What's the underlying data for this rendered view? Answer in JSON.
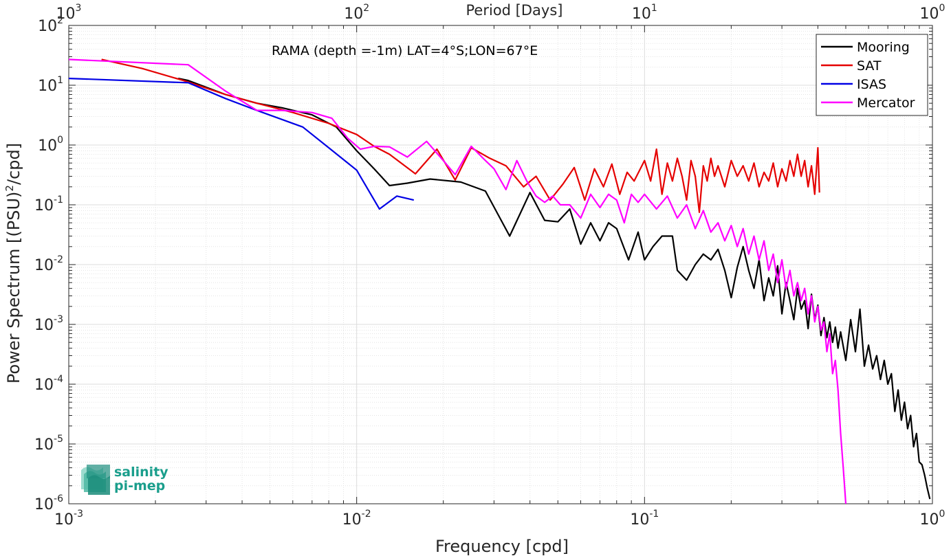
{
  "chart_data": {
    "type": "line",
    "title": "RAMA (depth =-1m) LAT=4°S;LON=67°E",
    "xlabel": "Frequency [cpd]",
    "ylabel_base": "Power Spectrum [(PSU)",
    "ylabel_sup": "2",
    "ylabel_tail": "/cpd]",
    "top_xlabel": "Period [Days]",
    "x_scale": "log",
    "y_scale": "log",
    "xlim": [
      0.001,
      1
    ],
    "ylim": [
      1e-06,
      100
    ],
    "grid": true,
    "legend_position": "top-right",
    "x_ticks": [
      {
        "base": "10",
        "exp": "-3",
        "value": 0.001
      },
      {
        "base": "10",
        "exp": "-2",
        "value": 0.01
      },
      {
        "base": "10",
        "exp": "-1",
        "value": 0.1
      },
      {
        "base": "10",
        "exp": "0",
        "value": 1
      }
    ],
    "top_ticks": [
      {
        "base": "10",
        "exp": "3",
        "value": 0.001
      },
      {
        "base": "10",
        "exp": "2",
        "value": 0.01
      },
      {
        "base": "10",
        "exp": "1",
        "value": 0.1
      },
      {
        "base": "10",
        "exp": "0",
        "value": 1
      }
    ],
    "y_ticks": [
      {
        "base": "10",
        "exp": "2",
        "value": 100
      },
      {
        "base": "10",
        "exp": "1",
        "value": 10
      },
      {
        "base": "10",
        "exp": "0",
        "value": 1
      },
      {
        "base": "10",
        "exp": "-1",
        "value": 0.1
      },
      {
        "base": "10",
        "exp": "-2",
        "value": 0.01
      },
      {
        "base": "10",
        "exp": "-3",
        "value": 0.001
      },
      {
        "base": "10",
        "exp": "-4",
        "value": 0.0001
      },
      {
        "base": "10",
        "exp": "-5",
        "value": 1e-05
      },
      {
        "base": "10",
        "exp": "-6",
        "value": 1e-06
      }
    ],
    "series": [
      {
        "name": "Mooring",
        "color": "#000000",
        "points": [
          [
            0.0024,
            13
          ],
          [
            0.0026,
            12
          ],
          [
            0.0035,
            7
          ],
          [
            0.0045,
            5
          ],
          [
            0.0055,
            4.2
          ],
          [
            0.007,
            3.2
          ],
          [
            0.0085,
            2
          ],
          [
            0.01,
            0.8
          ],
          [
            0.0115,
            0.4
          ],
          [
            0.013,
            0.21
          ],
          [
            0.015,
            0.23
          ],
          [
            0.018,
            0.27
          ],
          [
            0.023,
            0.24
          ],
          [
            0.028,
            0.17
          ],
          [
            0.034,
            0.03
          ],
          [
            0.04,
            0.16
          ],
          [
            0.045,
            0.055
          ],
          [
            0.05,
            0.052
          ],
          [
            0.055,
            0.085
          ],
          [
            0.06,
            0.022
          ],
          [
            0.065,
            0.05
          ],
          [
            0.07,
            0.025
          ],
          [
            0.075,
            0.05
          ],
          [
            0.08,
            0.04
          ],
          [
            0.088,
            0.012
          ],
          [
            0.095,
            0.035
          ],
          [
            0.1,
            0.012
          ],
          [
            0.107,
            0.02
          ],
          [
            0.115,
            0.03
          ],
          [
            0.125,
            0.03
          ],
          [
            0.13,
            0.008
          ],
          [
            0.14,
            0.0055
          ],
          [
            0.15,
            0.01
          ],
          [
            0.16,
            0.015
          ],
          [
            0.17,
            0.012
          ],
          [
            0.18,
            0.018
          ],
          [
            0.19,
            0.008
          ],
          [
            0.2,
            0.0028
          ],
          [
            0.21,
            0.009
          ],
          [
            0.22,
            0.02
          ],
          [
            0.23,
            0.008
          ],
          [
            0.24,
            0.004
          ],
          [
            0.25,
            0.012
          ],
          [
            0.26,
            0.0025
          ],
          [
            0.27,
            0.006
          ],
          [
            0.28,
            0.003
          ],
          [
            0.29,
            0.0095
          ],
          [
            0.3,
            0.0015
          ],
          [
            0.31,
            0.005
          ],
          [
            0.32,
            0.0025
          ],
          [
            0.33,
            0.0012
          ],
          [
            0.34,
            0.004
          ],
          [
            0.35,
            0.0018
          ],
          [
            0.36,
            0.0025
          ],
          [
            0.37,
            0.00085
          ],
          [
            0.38,
            0.0032
          ],
          [
            0.39,
            0.0012
          ],
          [
            0.4,
            0.0021
          ],
          [
            0.41,
            0.00065
          ],
          [
            0.42,
            0.0013
          ],
          [
            0.43,
            0.0006
          ],
          [
            0.44,
            0.0011
          ],
          [
            0.45,
            0.0005
          ],
          [
            0.46,
            0.0009
          ],
          [
            0.47,
            0.0004
          ],
          [
            0.48,
            0.00075
          ],
          [
            0.5,
            0.00025
          ],
          [
            0.52,
            0.0012
          ],
          [
            0.54,
            0.00035
          ],
          [
            0.56,
            0.0018
          ],
          [
            0.58,
            0.0002
          ],
          [
            0.6,
            0.00045
          ],
          [
            0.62,
            0.00018
          ],
          [
            0.64,
            0.0003
          ],
          [
            0.66,
            0.00012
          ],
          [
            0.68,
            0.00025
          ],
          [
            0.7,
            0.0001
          ],
          [
            0.72,
            0.00015
          ],
          [
            0.74,
            3.5e-05
          ],
          [
            0.76,
            8e-05
          ],
          [
            0.78,
            2.5e-05
          ],
          [
            0.8,
            5e-05
          ],
          [
            0.82,
            1.8e-05
          ],
          [
            0.84,
            3e-05
          ],
          [
            0.86,
            9e-06
          ],
          [
            0.88,
            1.5e-05
          ],
          [
            0.9,
            5e-06
          ],
          [
            0.92,
            4.5e-06
          ],
          [
            0.94,
            3e-06
          ],
          [
            0.96,
            1.8e-06
          ],
          [
            0.98,
            1.2e-06
          ]
        ]
      },
      {
        "name": "SAT",
        "color": "#e50000",
        "points": [
          [
            0.0013,
            27
          ],
          [
            0.0018,
            19
          ],
          [
            0.0025,
            12
          ],
          [
            0.0035,
            7
          ],
          [
            0.0045,
            5
          ],
          [
            0.006,
            3.5
          ],
          [
            0.008,
            2.3
          ],
          [
            0.01,
            1.5
          ],
          [
            0.0115,
            0.95
          ],
          [
            0.013,
            0.7
          ],
          [
            0.016,
            0.33
          ],
          [
            0.019,
            0.85
          ],
          [
            0.022,
            0.26
          ],
          [
            0.025,
            0.9
          ],
          [
            0.029,
            0.6
          ],
          [
            0.033,
            0.45
          ],
          [
            0.038,
            0.2
          ],
          [
            0.042,
            0.3
          ],
          [
            0.047,
            0.12
          ],
          [
            0.052,
            0.22
          ],
          [
            0.057,
            0.42
          ],
          [
            0.062,
            0.12
          ],
          [
            0.067,
            0.4
          ],
          [
            0.072,
            0.2
          ],
          [
            0.077,
            0.48
          ],
          [
            0.082,
            0.15
          ],
          [
            0.087,
            0.35
          ],
          [
            0.092,
            0.25
          ],
          [
            0.1,
            0.55
          ],
          [
            0.105,
            0.25
          ],
          [
            0.11,
            0.85
          ],
          [
            0.115,
            0.15
          ],
          [
            0.12,
            0.5
          ],
          [
            0.125,
            0.25
          ],
          [
            0.13,
            0.6
          ],
          [
            0.135,
            0.3
          ],
          [
            0.14,
            0.12
          ],
          [
            0.145,
            0.55
          ],
          [
            0.15,
            0.3
          ],
          [
            0.155,
            0.075
          ],
          [
            0.16,
            0.45
          ],
          [
            0.165,
            0.25
          ],
          [
            0.17,
            0.6
          ],
          [
            0.175,
            0.3
          ],
          [
            0.18,
            0.45
          ],
          [
            0.19,
            0.2
          ],
          [
            0.2,
            0.55
          ],
          [
            0.21,
            0.3
          ],
          [
            0.22,
            0.45
          ],
          [
            0.23,
            0.25
          ],
          [
            0.24,
            0.5
          ],
          [
            0.25,
            0.2
          ],
          [
            0.26,
            0.35
          ],
          [
            0.27,
            0.25
          ],
          [
            0.28,
            0.5
          ],
          [
            0.29,
            0.2
          ],
          [
            0.3,
            0.4
          ],
          [
            0.31,
            0.25
          ],
          [
            0.32,
            0.55
          ],
          [
            0.33,
            0.3
          ],
          [
            0.34,
            0.7
          ],
          [
            0.35,
            0.3
          ],
          [
            0.36,
            0.55
          ],
          [
            0.37,
            0.2
          ],
          [
            0.38,
            0.45
          ],
          [
            0.39,
            0.15
          ],
          [
            0.4,
            0.9
          ],
          [
            0.405,
            0.16
          ]
        ]
      },
      {
        "name": "ISAS",
        "color": "#0000e5",
        "points": [
          [
            0.001,
            13
          ],
          [
            0.0026,
            11
          ],
          [
            0.0035,
            6
          ],
          [
            0.0045,
            3.8
          ],
          [
            0.0065,
            2
          ],
          [
            0.008,
            0.9
          ],
          [
            0.01,
            0.38
          ],
          [
            0.012,
            0.085
          ],
          [
            0.0138,
            0.14
          ],
          [
            0.0158,
            0.12
          ]
        ]
      },
      {
        "name": "Mercator",
        "color": "#ff00ff",
        "points": [
          [
            0.001,
            27
          ],
          [
            0.0026,
            22
          ],
          [
            0.0035,
            8
          ],
          [
            0.0045,
            3.8
          ],
          [
            0.0055,
            3.8
          ],
          [
            0.007,
            3.5
          ],
          [
            0.0082,
            2.8
          ],
          [
            0.0093,
            1.3
          ],
          [
            0.0103,
            0.85
          ],
          [
            0.0115,
            0.95
          ],
          [
            0.013,
            0.93
          ],
          [
            0.015,
            0.63
          ],
          [
            0.0175,
            1.15
          ],
          [
            0.02,
            0.55
          ],
          [
            0.022,
            0.32
          ],
          [
            0.025,
            0.95
          ],
          [
            0.028,
            0.55
          ],
          [
            0.03,
            0.4
          ],
          [
            0.033,
            0.18
          ],
          [
            0.036,
            0.55
          ],
          [
            0.039,
            0.25
          ],
          [
            0.042,
            0.14
          ],
          [
            0.045,
            0.11
          ],
          [
            0.048,
            0.14
          ],
          [
            0.051,
            0.1
          ],
          [
            0.055,
            0.1
          ],
          [
            0.06,
            0.06
          ],
          [
            0.065,
            0.15
          ],
          [
            0.07,
            0.09
          ],
          [
            0.075,
            0.15
          ],
          [
            0.08,
            0.12
          ],
          [
            0.085,
            0.05
          ],
          [
            0.09,
            0.15
          ],
          [
            0.095,
            0.11
          ],
          [
            0.1,
            0.15
          ],
          [
            0.11,
            0.085
          ],
          [
            0.12,
            0.14
          ],
          [
            0.13,
            0.06
          ],
          [
            0.14,
            0.1
          ],
          [
            0.15,
            0.04
          ],
          [
            0.16,
            0.08
          ],
          [
            0.17,
            0.035
          ],
          [
            0.18,
            0.05
          ],
          [
            0.19,
            0.025
          ],
          [
            0.2,
            0.045
          ],
          [
            0.21,
            0.02
          ],
          [
            0.22,
            0.04
          ],
          [
            0.23,
            0.015
          ],
          [
            0.24,
            0.03
          ],
          [
            0.25,
            0.012
          ],
          [
            0.26,
            0.025
          ],
          [
            0.27,
            0.008
          ],
          [
            0.28,
            0.015
          ],
          [
            0.29,
            0.005
          ],
          [
            0.3,
            0.012
          ],
          [
            0.31,
            0.004
          ],
          [
            0.32,
            0.008
          ],
          [
            0.33,
            0.003
          ],
          [
            0.34,
            0.005
          ],
          [
            0.35,
            0.0025
          ],
          [
            0.36,
            0.004
          ],
          [
            0.37,
            0.0015
          ],
          [
            0.38,
            0.003
          ],
          [
            0.39,
            0.0011
          ],
          [
            0.4,
            0.002
          ],
          [
            0.41,
            0.0008
          ],
          [
            0.42,
            0.0011
          ],
          [
            0.43,
            0.00035
          ],
          [
            0.44,
            0.0007
          ],
          [
            0.45,
            0.00015
          ],
          [
            0.46,
            0.00025
          ],
          [
            0.47,
            8e-05
          ],
          [
            0.48,
            1.5e-05
          ],
          [
            0.49,
            4e-06
          ],
          [
            0.5,
            1e-06
          ]
        ]
      }
    ]
  },
  "logo": {
    "line1": "salinity",
    "line2": "pi-mep",
    "color": "#1a9e8c"
  }
}
